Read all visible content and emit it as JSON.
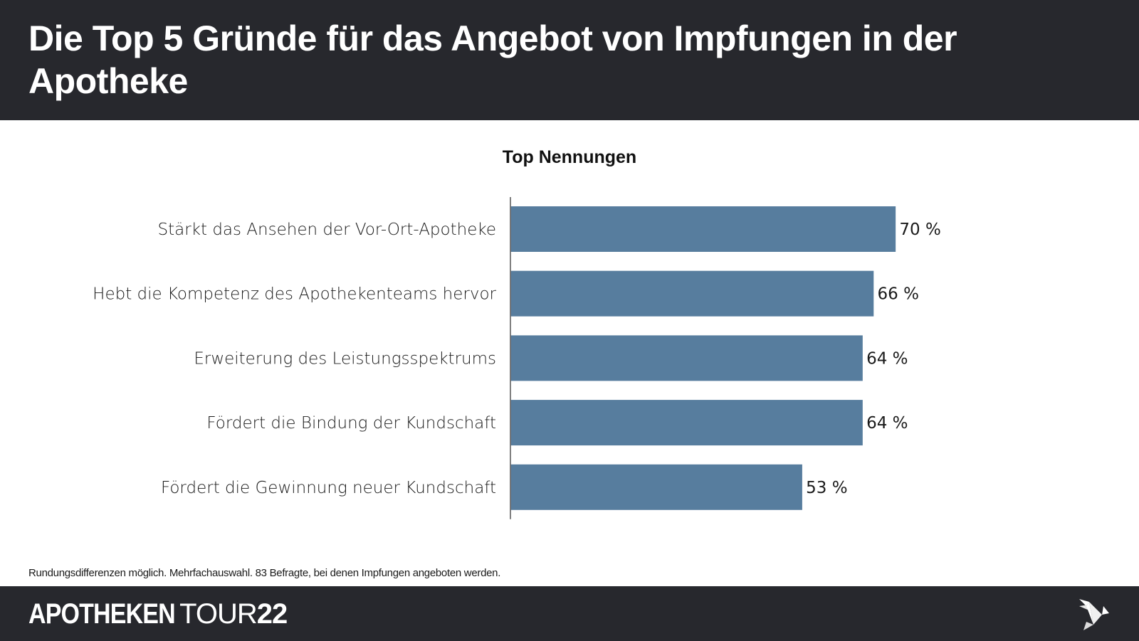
{
  "header": {
    "title": "Die Top 5 Gründe für das Angebot von Impfungen in der Apotheke"
  },
  "chart_data": {
    "type": "bar",
    "orientation": "horizontal",
    "title": "Top Nennungen",
    "categories": [
      "Stärkt das Ansehen der Vor-Ort-Apotheke",
      "Hebt die Kompetenz des Apothekenteams hervor",
      "Erweiterung des Leistungsspektrums",
      "Fördert die Bindung der Kundschaft",
      "Fördert die Gewinnung neuer Kundschaft"
    ],
    "values": [
      70,
      66,
      64,
      64,
      53
    ],
    "value_labels": [
      "70 %",
      "66 %",
      "64 %",
      "64 %",
      "53 %"
    ],
    "unit": "%",
    "xlabel": "",
    "ylabel": "",
    "xlim": [
      0,
      100
    ],
    "grid": false,
    "legend": "none",
    "bar_color": "#577d9e"
  },
  "footnote": "Rundungsdifferenzen möglich. Mehrfachauswahl. 83 Befragte, bei denen Impfungen angeboten werden.",
  "footer": {
    "brand_part1": "APOTHEKEN",
    "brand_part2": "TOUR",
    "brand_part3": "22",
    "logo_icon": "origami-bird-icon"
  }
}
